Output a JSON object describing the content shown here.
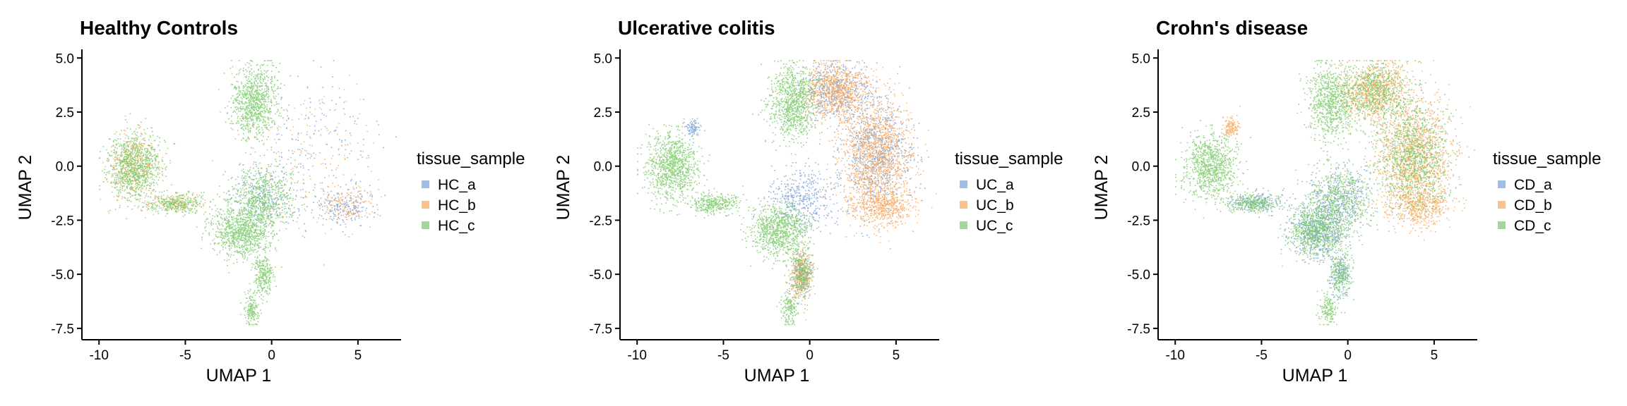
{
  "chart_data": [
    {
      "type": "scatter",
      "title": "Healthy Controls",
      "xlabel": "UMAP 1",
      "ylabel": "UMAP 2",
      "xlim": [
        -10.5,
        7.5
      ],
      "ylim": [
        -7.7,
        5.4
      ],
      "xticks": [
        -10,
        -5,
        0,
        5
      ],
      "yticks": [
        -7.5,
        -5.0,
        -2.5,
        0.0,
        2.5,
        5.0
      ],
      "xtick_labels": [
        "-10",
        "-5",
        "0",
        "5"
      ],
      "ytick_labels": [
        "-7.5",
        "-5.0",
        "-2.5",
        "0.0",
        "2.5",
        "5.0"
      ],
      "legend": {
        "title": "tissue_sample",
        "position": "right"
      },
      "series": [
        {
          "name": "HC_a",
          "color": "#6f9ad3",
          "approx_regions": [
            [
              1.5,
              0.5
            ],
            [
              0.3,
              -1.8
            ],
            [
              4.5,
              -1.5
            ],
            [
              -1.0,
              -3.0
            ]
          ]
        },
        {
          "name": "HC_b",
          "color": "#f9a04c",
          "approx_regions": [
            [
              4.0,
              -2.5
            ],
            [
              -8.5,
              0.5
            ],
            [
              4.5,
              1.5
            ],
            [
              0.0,
              -5.0
            ]
          ]
        },
        {
          "name": "HC_c",
          "color": "#6fc45a",
          "approx_regions": [
            [
              -8.0,
              0.0
            ],
            [
              -1.2,
              3.0
            ],
            [
              0.0,
              -3.5
            ],
            [
              -1.0,
              -6.5
            ]
          ]
        }
      ]
    },
    {
      "type": "scatter",
      "title": "Ulcerative colitis",
      "xlabel": "UMAP 1",
      "ylabel": "UMAP 2",
      "xlim": [
        -10.5,
        7.5
      ],
      "ylim": [
        -7.7,
        5.4
      ],
      "xticks": [
        -10,
        -5,
        0,
        5
      ],
      "yticks": [
        -7.5,
        -5.0,
        -2.5,
        0.0,
        2.5,
        5.0
      ],
      "xtick_labels": [
        "-10",
        "-5",
        "0",
        "5"
      ],
      "ytick_labels": [
        "-7.5",
        "-5.0",
        "-2.5",
        "0.0",
        "2.5",
        "5.0"
      ],
      "legend": {
        "title": "tissue_sample",
        "position": "right"
      },
      "series": [
        {
          "name": "UC_a",
          "color": "#6f9ad3",
          "approx_regions": [
            [
              5.0,
              4.0
            ],
            [
              -6.8,
              1.8
            ],
            [
              2.0,
              -3.5
            ],
            [
              0.5,
              -5.5
            ]
          ]
        },
        {
          "name": "UC_b",
          "color": "#f9a04c",
          "approx_regions": [
            [
              3.5,
              1.0
            ],
            [
              5.5,
              -1.0
            ],
            [
              1.5,
              3.5
            ]
          ]
        },
        {
          "name": "UC_c",
          "color": "#6fc45a",
          "approx_regions": [
            [
              -8.0,
              0.0
            ],
            [
              -1.5,
              2.5
            ],
            [
              -2.0,
              -3.0
            ],
            [
              -1.0,
              -6.5
            ]
          ]
        }
      ]
    },
    {
      "type": "scatter",
      "title": "Crohn's disease",
      "xlabel": "UMAP 1",
      "ylabel": "UMAP 2",
      "xlim": [
        -10.5,
        7.5
      ],
      "ylim": [
        -7.7,
        5.4
      ],
      "xticks": [
        -10,
        -5,
        0,
        5
      ],
      "yticks": [
        -7.5,
        -5.0,
        -2.5,
        0.0,
        2.5,
        5.0
      ],
      "xtick_labels": [
        "-10",
        "-5",
        "0",
        "5"
      ],
      "ytick_labels": [
        "-7.5",
        "-5.0",
        "-2.5",
        "0.0",
        "2.5",
        "5.0"
      ],
      "legend": {
        "title": "tissue_sample",
        "position": "right"
      },
      "series": [
        {
          "name": "CD_a",
          "color": "#6f9ad3",
          "approx_regions": [
            [
              -2.5,
              -2.5
            ],
            [
              -0.5,
              -4.0
            ],
            [
              -6.0,
              -1.5
            ]
          ]
        },
        {
          "name": "CD_b",
          "color": "#f9a04c",
          "approx_regions": [
            [
              4.5,
              0.0
            ],
            [
              5.5,
              -1.5
            ],
            [
              3.0,
              3.5
            ]
          ]
        },
        {
          "name": "CD_c",
          "color": "#6fc45a",
          "approx_regions": [
            [
              -8.0,
              0.0
            ],
            [
              1.5,
              2.5
            ],
            [
              -1.5,
              -3.0
            ],
            [
              -1.0,
              -6.5
            ]
          ]
        }
      ]
    }
  ]
}
